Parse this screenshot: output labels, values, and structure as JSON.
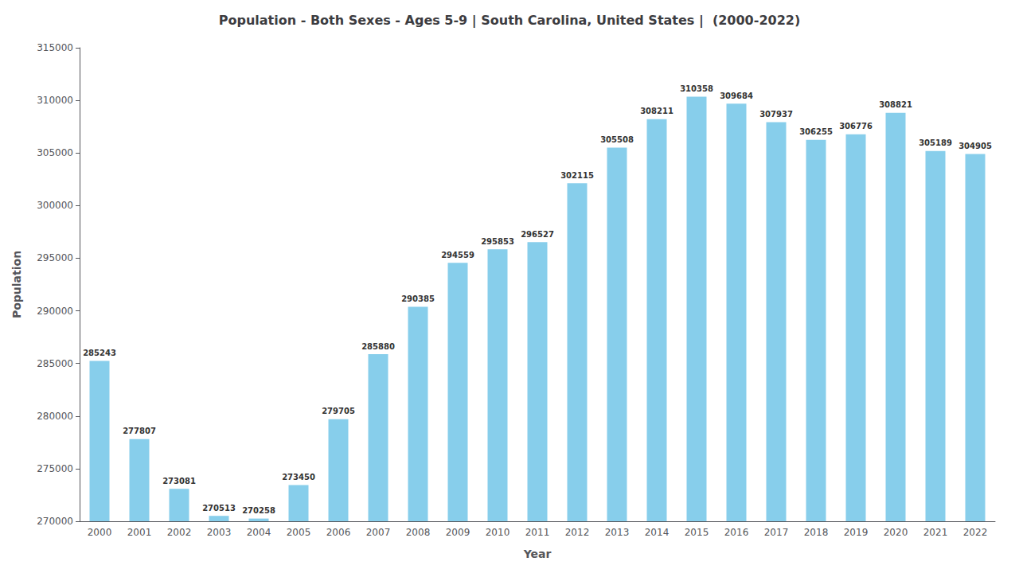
{
  "chart_data": {
    "type": "bar",
    "title": "Population - Both Sexes - Ages 5-9 | South Carolina, United States |  (2000-2022)",
    "x_label": "Year",
    "y_label": "Population",
    "categories": [
      "2000",
      "2001",
      "2002",
      "2003",
      "2004",
      "2005",
      "2006",
      "2007",
      "2008",
      "2009",
      "2010",
      "2011",
      "2012",
      "2013",
      "2014",
      "2015",
      "2016",
      "2017",
      "2018",
      "2019",
      "2020",
      "2021",
      "2022"
    ],
    "values": [
      285243,
      277807,
      273081,
      270513,
      270258,
      273450,
      279705,
      285880,
      290385,
      294559,
      295853,
      296527,
      302115,
      305508,
      308211,
      310358,
      309684,
      307937,
      306255,
      306776,
      308821,
      305189,
      304905
    ],
    "color": "#87ceeb",
    "ylim": [
      270000,
      315000
    ],
    "yticks": [
      270000,
      275000,
      280000,
      285000,
      290000,
      295000,
      300000,
      305000,
      310000,
      315000
    ],
    "grid": false,
    "data_labels": true
  }
}
